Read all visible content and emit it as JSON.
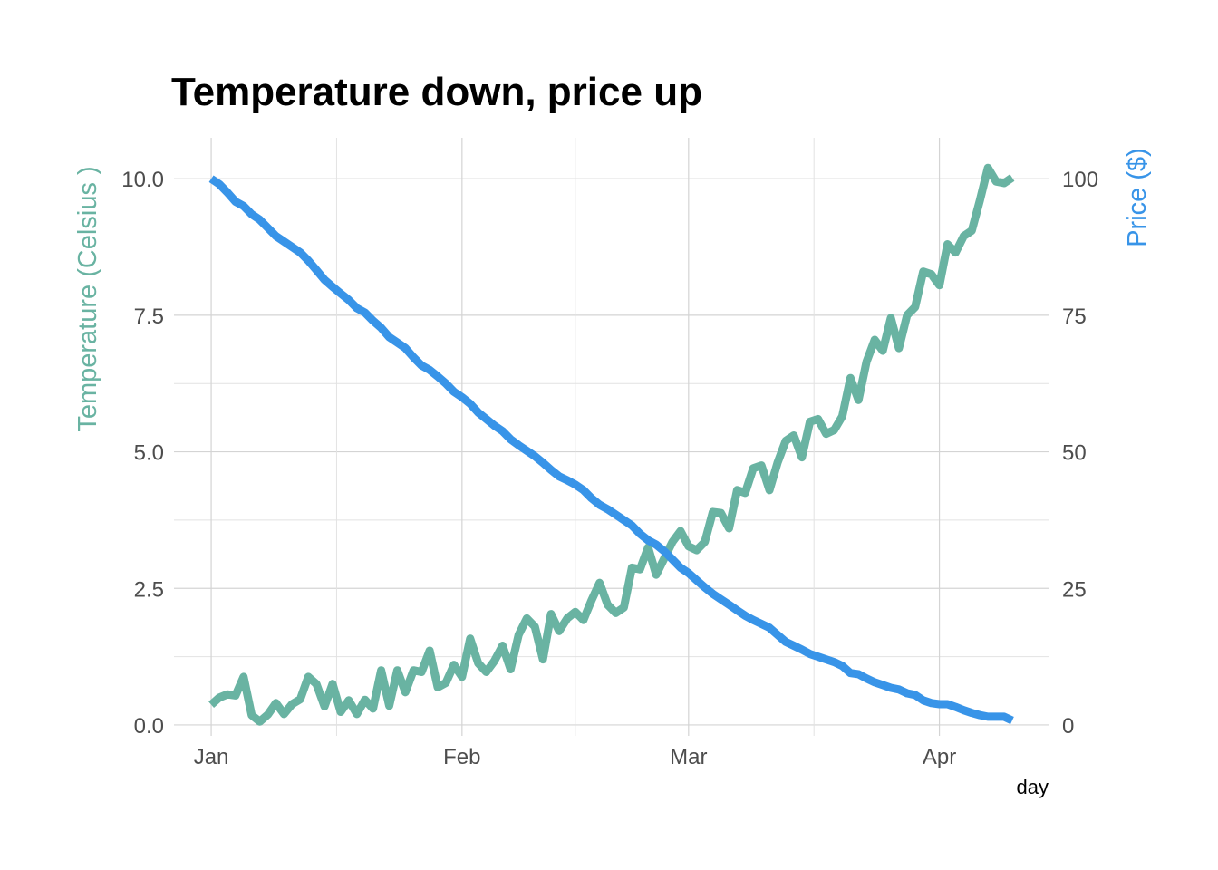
{
  "chart_data": {
    "type": "line",
    "title": "Temperature down, price up",
    "xlabel": "day",
    "ylabel_left": "Temperature (Celsius )",
    "ylabel_right": "Price ($)",
    "x_range": [
      "2022-01-01",
      "2022-04-10"
    ],
    "x_ticks": [
      {
        "date": "2022-01-01",
        "label": "Jan"
      },
      {
        "date": "2022-02-01",
        "label": "Feb"
      },
      {
        "date": "2022-03-01",
        "label": "Mar"
      },
      {
        "date": "2022-04-01",
        "label": "Apr"
      }
    ],
    "ylim_left": [
      -0.2,
      10.75
    ],
    "ylim_right": [
      -2,
      107.5
    ],
    "yticks_left": [
      "0.0",
      "2.5",
      "5.0",
      "7.5",
      "10.0"
    ],
    "yticks_right": [
      "0",
      "25",
      "50",
      "75",
      "100"
    ],
    "grid": true,
    "colors": {
      "temperature": "#69b3a2",
      "price": "#3894e8"
    },
    "series": [
      {
        "axis": "left",
        "color": "#69b3a2",
        "points": [
          [
            "2022-01-01",
            0.37
          ],
          [
            "2022-01-02",
            0.5
          ],
          [
            "2022-01-03",
            0.56
          ],
          [
            "2022-01-04",
            0.54
          ],
          [
            "2022-01-05",
            0.88
          ],
          [
            "2022-01-06",
            0.18
          ],
          [
            "2022-01-07",
            0.06
          ],
          [
            "2022-01-08",
            0.19
          ],
          [
            "2022-01-09",
            0.4
          ],
          [
            "2022-01-10",
            0.2
          ],
          [
            "2022-01-11",
            0.38
          ],
          [
            "2022-01-12",
            0.47
          ],
          [
            "2022-01-13",
            0.88
          ],
          [
            "2022-01-14",
            0.75
          ],
          [
            "2022-01-15",
            0.34
          ],
          [
            "2022-01-16",
            0.75
          ],
          [
            "2022-01-17",
            0.24
          ],
          [
            "2022-01-18",
            0.45
          ],
          [
            "2022-01-19",
            0.2
          ],
          [
            "2022-01-20",
            0.46
          ],
          [
            "2022-01-21",
            0.3
          ],
          [
            "2022-01-22",
            1.0
          ],
          [
            "2022-01-23",
            0.35
          ],
          [
            "2022-01-24",
            1.0
          ],
          [
            "2022-01-25",
            0.6
          ],
          [
            "2022-01-26",
            1.0
          ],
          [
            "2022-01-27",
            0.97
          ],
          [
            "2022-01-28",
            1.36
          ],
          [
            "2022-01-29",
            0.69
          ],
          [
            "2022-01-30",
            0.77
          ],
          [
            "2022-01-31",
            1.1
          ],
          [
            "2022-02-01",
            0.88
          ],
          [
            "2022-02-02",
            1.58
          ],
          [
            "2022-02-03",
            1.13
          ],
          [
            "2022-02-04",
            0.97
          ],
          [
            "2022-02-05",
            1.17
          ],
          [
            "2022-02-06",
            1.45
          ],
          [
            "2022-02-07",
            1.02
          ],
          [
            "2022-02-08",
            1.65
          ],
          [
            "2022-02-09",
            1.95
          ],
          [
            "2022-02-10",
            1.8
          ],
          [
            "2022-02-11",
            1.2
          ],
          [
            "2022-02-12",
            2.03
          ],
          [
            "2022-02-13",
            1.72
          ],
          [
            "2022-02-14",
            1.95
          ],
          [
            "2022-02-15",
            2.07
          ],
          [
            "2022-02-16",
            1.92
          ],
          [
            "2022-02-17",
            2.28
          ],
          [
            "2022-02-18",
            2.6
          ],
          [
            "2022-02-19",
            2.2
          ],
          [
            "2022-02-20",
            2.05
          ],
          [
            "2022-02-21",
            2.15
          ],
          [
            "2022-02-22",
            2.88
          ],
          [
            "2022-02-23",
            2.85
          ],
          [
            "2022-02-24",
            3.25
          ],
          [
            "2022-02-25",
            2.75
          ],
          [
            "2022-02-26",
            3.05
          ],
          [
            "2022-02-27",
            3.35
          ],
          [
            "2022-02-28",
            3.55
          ],
          [
            "2022-03-01",
            3.27
          ],
          [
            "2022-03-02",
            3.2
          ],
          [
            "2022-03-03",
            3.35
          ],
          [
            "2022-03-04",
            3.9
          ],
          [
            "2022-03-05",
            3.88
          ],
          [
            "2022-03-06",
            3.6
          ],
          [
            "2022-03-07",
            4.3
          ],
          [
            "2022-03-08",
            4.25
          ],
          [
            "2022-03-09",
            4.7
          ],
          [
            "2022-03-10",
            4.75
          ],
          [
            "2022-03-11",
            4.3
          ],
          [
            "2022-03-12",
            4.8
          ],
          [
            "2022-03-13",
            5.2
          ],
          [
            "2022-03-14",
            5.3
          ],
          [
            "2022-03-15",
            4.9
          ],
          [
            "2022-03-16",
            5.55
          ],
          [
            "2022-03-17",
            5.6
          ],
          [
            "2022-03-18",
            5.33
          ],
          [
            "2022-03-19",
            5.4
          ],
          [
            "2022-03-20",
            5.65
          ],
          [
            "2022-03-21",
            6.35
          ],
          [
            "2022-03-22",
            5.95
          ],
          [
            "2022-03-23",
            6.65
          ],
          [
            "2022-03-24",
            7.05
          ],
          [
            "2022-03-25",
            6.85
          ],
          [
            "2022-03-26",
            7.45
          ],
          [
            "2022-03-27",
            6.9
          ],
          [
            "2022-03-28",
            7.5
          ],
          [
            "2022-03-29",
            7.65
          ],
          [
            "2022-03-30",
            8.3
          ],
          [
            "2022-03-31",
            8.25
          ],
          [
            "2022-04-01",
            8.05
          ],
          [
            "2022-04-02",
            8.8
          ],
          [
            "2022-04-03",
            8.65
          ],
          [
            "2022-04-04",
            8.95
          ],
          [
            "2022-04-05",
            9.05
          ],
          [
            "2022-04-06",
            9.6
          ],
          [
            "2022-04-07",
            10.2
          ],
          [
            "2022-04-08",
            9.95
          ],
          [
            "2022-04-09",
            9.92
          ],
          [
            "2022-04-10",
            10.02
          ]
        ]
      },
      {
        "axis": "right",
        "color": "#3894e8",
        "points": [
          [
            "2022-01-01",
            100
          ],
          [
            "2022-01-02",
            99
          ],
          [
            "2022-01-03",
            97.5
          ],
          [
            "2022-01-04",
            95.8
          ],
          [
            "2022-01-05",
            95
          ],
          [
            "2022-01-06",
            93.5
          ],
          [
            "2022-01-07",
            92.5
          ],
          [
            "2022-01-08",
            91
          ],
          [
            "2022-01-09",
            89.5
          ],
          [
            "2022-01-10",
            88.5
          ],
          [
            "2022-01-11",
            87.5
          ],
          [
            "2022-01-12",
            86.5
          ],
          [
            "2022-01-13",
            85
          ],
          [
            "2022-01-14",
            83.3
          ],
          [
            "2022-01-15",
            81.5
          ],
          [
            "2022-01-16",
            80.2
          ],
          [
            "2022-01-17",
            79
          ],
          [
            "2022-01-18",
            77.8
          ],
          [
            "2022-01-19",
            76.3
          ],
          [
            "2022-01-20",
            75.5
          ],
          [
            "2022-01-21",
            74
          ],
          [
            "2022-01-22",
            72.7
          ],
          [
            "2022-01-23",
            71
          ],
          [
            "2022-01-24",
            70
          ],
          [
            "2022-01-25",
            69
          ],
          [
            "2022-01-26",
            67.3
          ],
          [
            "2022-01-27",
            65.8
          ],
          [
            "2022-01-28",
            65
          ],
          [
            "2022-01-29",
            63.8
          ],
          [
            "2022-01-30",
            62.5
          ],
          [
            "2022-01-31",
            61
          ],
          [
            "2022-02-01",
            60
          ],
          [
            "2022-02-02",
            58.8
          ],
          [
            "2022-02-03",
            57.2
          ],
          [
            "2022-02-04",
            56
          ],
          [
            "2022-02-05",
            54.8
          ],
          [
            "2022-02-06",
            53.8
          ],
          [
            "2022-02-07",
            52.3
          ],
          [
            "2022-02-08",
            51.2
          ],
          [
            "2022-02-09",
            50.2
          ],
          [
            "2022-02-10",
            49.2
          ],
          [
            "2022-02-11",
            48
          ],
          [
            "2022-02-12",
            46.7
          ],
          [
            "2022-02-13",
            45.5
          ],
          [
            "2022-02-14",
            44.8
          ],
          [
            "2022-02-15",
            44
          ],
          [
            "2022-02-16",
            43
          ],
          [
            "2022-02-17",
            41.5
          ],
          [
            "2022-02-18",
            40.3
          ],
          [
            "2022-02-19",
            39.5
          ],
          [
            "2022-02-20",
            38.5
          ],
          [
            "2022-02-21",
            37.5
          ],
          [
            "2022-02-22",
            36.5
          ],
          [
            "2022-02-23",
            35
          ],
          [
            "2022-02-24",
            33.8
          ],
          [
            "2022-02-25",
            33
          ],
          [
            "2022-02-26",
            31.8
          ],
          [
            "2022-02-27",
            30.3
          ],
          [
            "2022-02-28",
            28.8
          ],
          [
            "2022-03-01",
            27.8
          ],
          [
            "2022-03-02",
            26.5
          ],
          [
            "2022-03-03",
            25.2
          ],
          [
            "2022-03-04",
            24
          ],
          [
            "2022-03-05",
            23
          ],
          [
            "2022-03-06",
            22
          ],
          [
            "2022-03-07",
            21
          ],
          [
            "2022-03-08",
            20
          ],
          [
            "2022-03-09",
            19.2
          ],
          [
            "2022-03-10",
            18.5
          ],
          [
            "2022-03-11",
            17.8
          ],
          [
            "2022-03-12",
            16.5
          ],
          [
            "2022-03-13",
            15.2
          ],
          [
            "2022-03-14",
            14.5
          ],
          [
            "2022-03-15",
            13.8
          ],
          [
            "2022-03-16",
            13
          ],
          [
            "2022-03-17",
            12.5
          ],
          [
            "2022-03-18",
            12
          ],
          [
            "2022-03-19",
            11.5
          ],
          [
            "2022-03-20",
            10.8
          ],
          [
            "2022-03-21",
            9.5
          ],
          [
            "2022-03-22",
            9.3
          ],
          [
            "2022-03-23",
            8.5
          ],
          [
            "2022-03-24",
            7.8
          ],
          [
            "2022-03-25",
            7.3
          ],
          [
            "2022-03-26",
            6.8
          ],
          [
            "2022-03-27",
            6.5
          ],
          [
            "2022-03-28",
            5.8
          ],
          [
            "2022-03-29",
            5.5
          ],
          [
            "2022-03-30",
            4.5
          ],
          [
            "2022-03-31",
            4
          ],
          [
            "2022-04-01",
            3.8
          ],
          [
            "2022-04-02",
            3.8
          ],
          [
            "2022-04-03",
            3.3
          ],
          [
            "2022-04-04",
            2.7
          ],
          [
            "2022-04-05",
            2.2
          ],
          [
            "2022-04-06",
            1.8
          ],
          [
            "2022-04-07",
            1.5
          ],
          [
            "2022-04-08",
            1.5
          ],
          [
            "2022-04-09",
            1.5
          ],
          [
            "2022-04-10",
            0.8
          ]
        ]
      }
    ]
  }
}
